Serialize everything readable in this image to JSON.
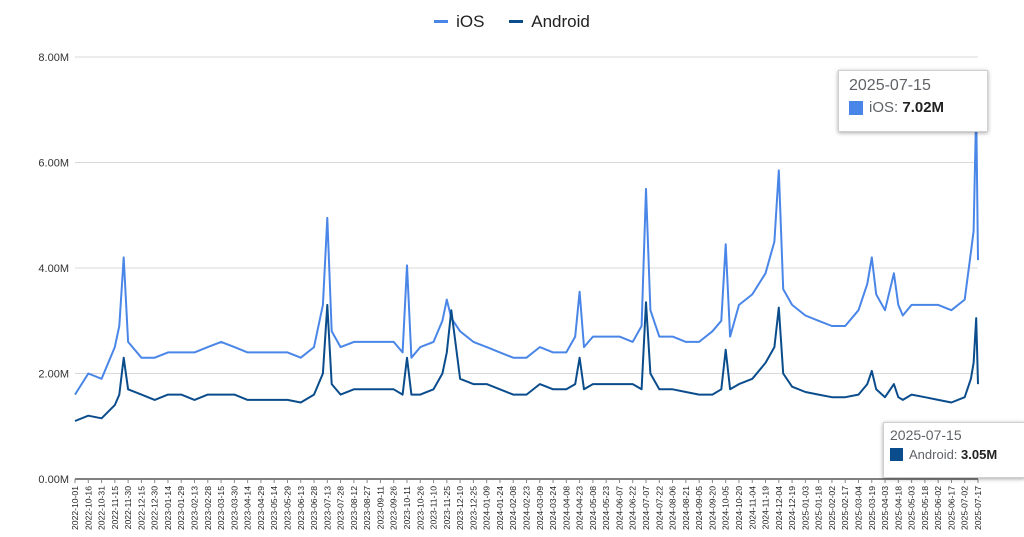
{
  "colors": {
    "ios": "#4a86e8",
    "android": "#0b4d8c",
    "grid": "#d9d9d9",
    "axis": "#333333"
  },
  "legend": [
    {
      "name": "iOS",
      "color": "#4a86e8"
    },
    {
      "name": "Android",
      "color": "#0b4d8c"
    }
  ],
  "tooltips": {
    "ios": {
      "date": "2025-07-15",
      "label": "iOS:",
      "value": "7.02M"
    },
    "android": {
      "date": "2025-07-15",
      "label": "Android:",
      "value": "3.05M"
    }
  },
  "chart_data": {
    "type": "line",
    "title": "",
    "xlabel": "",
    "ylabel": "",
    "ylim": [
      0,
      8000000
    ],
    "y_ticks": [
      "0.00M",
      "2.00M",
      "4.00M",
      "6.00M",
      "8.00M"
    ],
    "grid": true,
    "legend_position": "top",
    "x_tick_labels": [
      "2022-10-01",
      "2022-10-16",
      "2022-10-31",
      "2022-11-15",
      "2022-11-30",
      "2022-12-15",
      "2022-12-30",
      "2023-01-14",
      "2023-01-29",
      "2023-02-13",
      "2023-02-28",
      "2023-03-15",
      "2023-03-30",
      "2023-04-14",
      "2023-04-29",
      "2023-05-14",
      "2023-05-29",
      "2023-06-13",
      "2023-06-28",
      "2023-07-13",
      "2023-07-28",
      "2023-08-12",
      "2023-08-27",
      "2023-09-11",
      "2023-09-26",
      "2023-10-11",
      "2023-10-26",
      "2023-11-10",
      "2023-11-25",
      "2023-12-10",
      "2023-12-25",
      "2024-01-09",
      "2024-01-24",
      "2024-02-08",
      "2024-02-23",
      "2024-03-09",
      "2024-03-24",
      "2024-04-08",
      "2024-04-23",
      "2024-05-08",
      "2024-05-23",
      "2024-06-07",
      "2024-06-22",
      "2024-07-07",
      "2024-07-22",
      "2024-08-06",
      "2024-08-21",
      "2024-09-05",
      "2024-09-20",
      "2024-10-05",
      "2024-10-20",
      "2024-11-04",
      "2024-11-19",
      "2024-12-04",
      "2024-12-19",
      "2025-01-03",
      "2025-01-18",
      "2025-02-02",
      "2025-02-17",
      "2025-03-04",
      "2025-03-19",
      "2025-04-03",
      "2025-04-18",
      "2025-05-03",
      "2025-05-18",
      "2025-06-02",
      "2025-06-17",
      "2025-07-02",
      "2025-07-17"
    ],
    "x": [
      "2022-10-01",
      "2022-10-16",
      "2022-10-31",
      "2022-11-15",
      "2022-11-20",
      "2022-11-25",
      "2022-11-30",
      "2022-12-15",
      "2022-12-30",
      "2023-01-14",
      "2023-01-29",
      "2023-02-13",
      "2023-02-28",
      "2023-03-15",
      "2023-03-30",
      "2023-04-14",
      "2023-04-29",
      "2023-05-14",
      "2023-05-29",
      "2023-06-13",
      "2023-06-28",
      "2023-07-08",
      "2023-07-13",
      "2023-07-18",
      "2023-07-28",
      "2023-08-12",
      "2023-08-27",
      "2023-09-11",
      "2023-09-26",
      "2023-10-06",
      "2023-10-11",
      "2023-10-16",
      "2023-10-26",
      "2023-11-10",
      "2023-11-20",
      "2023-11-25",
      "2023-11-30",
      "2023-12-10",
      "2023-12-25",
      "2024-01-09",
      "2024-01-24",
      "2024-02-08",
      "2024-02-23",
      "2024-03-09",
      "2024-03-24",
      "2024-04-08",
      "2024-04-18",
      "2024-04-23",
      "2024-04-28",
      "2024-05-08",
      "2024-05-23",
      "2024-06-07",
      "2024-06-22",
      "2024-07-02",
      "2024-07-07",
      "2024-07-12",
      "2024-07-22",
      "2024-08-06",
      "2024-08-21",
      "2024-09-05",
      "2024-09-20",
      "2024-09-30",
      "2024-10-05",
      "2024-10-10",
      "2024-10-20",
      "2024-11-04",
      "2024-11-19",
      "2024-11-29",
      "2024-12-04",
      "2024-12-09",
      "2024-12-19",
      "2025-01-03",
      "2025-01-18",
      "2025-02-02",
      "2025-02-17",
      "2025-03-04",
      "2025-03-14",
      "2025-03-19",
      "2025-03-24",
      "2025-04-03",
      "2025-04-13",
      "2025-04-18",
      "2025-04-23",
      "2025-05-03",
      "2025-05-18",
      "2025-06-02",
      "2025-06-17",
      "2025-07-02",
      "2025-07-09",
      "2025-07-12",
      "2025-07-15",
      "2025-07-17"
    ],
    "series": [
      {
        "name": "iOS",
        "values": [
          1600000,
          2000000,
          1900000,
          2500000,
          2900000,
          4200000,
          2600000,
          2300000,
          2300000,
          2400000,
          2400000,
          2400000,
          2500000,
          2600000,
          2500000,
          2400000,
          2400000,
          2400000,
          2400000,
          2300000,
          2500000,
          3300000,
          4950000,
          2800000,
          2500000,
          2600000,
          2600000,
          2600000,
          2600000,
          2400000,
          4050000,
          2300000,
          2500000,
          2600000,
          3000000,
          3400000,
          3050000,
          2800000,
          2600000,
          2500000,
          2400000,
          2300000,
          2300000,
          2500000,
          2400000,
          2400000,
          2700000,
          3550000,
          2500000,
          2700000,
          2700000,
          2700000,
          2600000,
          2900000,
          5500000,
          3200000,
          2700000,
          2700000,
          2600000,
          2600000,
          2800000,
          3000000,
          4450000,
          2700000,
          3300000,
          3500000,
          3900000,
          4500000,
          5850000,
          3600000,
          3300000,
          3100000,
          3000000,
          2900000,
          2900000,
          3200000,
          3700000,
          4200000,
          3500000,
          3200000,
          3900000,
          3300000,
          3100000,
          3300000,
          3300000,
          3300000,
          3200000,
          3400000,
          4300000,
          4700000,
          7020000,
          4150000
        ]
      },
      {
        "name": "Android",
        "values": [
          1100000,
          1200000,
          1150000,
          1400000,
          1600000,
          2300000,
          1700000,
          1600000,
          1500000,
          1600000,
          1600000,
          1500000,
          1600000,
          1600000,
          1600000,
          1500000,
          1500000,
          1500000,
          1500000,
          1450000,
          1600000,
          2000000,
          3300000,
          1800000,
          1600000,
          1700000,
          1700000,
          1700000,
          1700000,
          1600000,
          2300000,
          1600000,
          1600000,
          1700000,
          2000000,
          2400000,
          3200000,
          1900000,
          1800000,
          1800000,
          1700000,
          1600000,
          1600000,
          1800000,
          1700000,
          1700000,
          1800000,
          2300000,
          1700000,
          1800000,
          1800000,
          1800000,
          1800000,
          1700000,
          3350000,
          2000000,
          1700000,
          1700000,
          1650000,
          1600000,
          1600000,
          1700000,
          2450000,
          1700000,
          1800000,
          1900000,
          2200000,
          2500000,
          3250000,
          2000000,
          1750000,
          1650000,
          1600000,
          1550000,
          1550000,
          1600000,
          1800000,
          2050000,
          1700000,
          1550000,
          1800000,
          1550000,
          1500000,
          1600000,
          1550000,
          1500000,
          1450000,
          1550000,
          1900000,
          2200000,
          3050000,
          1800000
        ]
      }
    ]
  }
}
